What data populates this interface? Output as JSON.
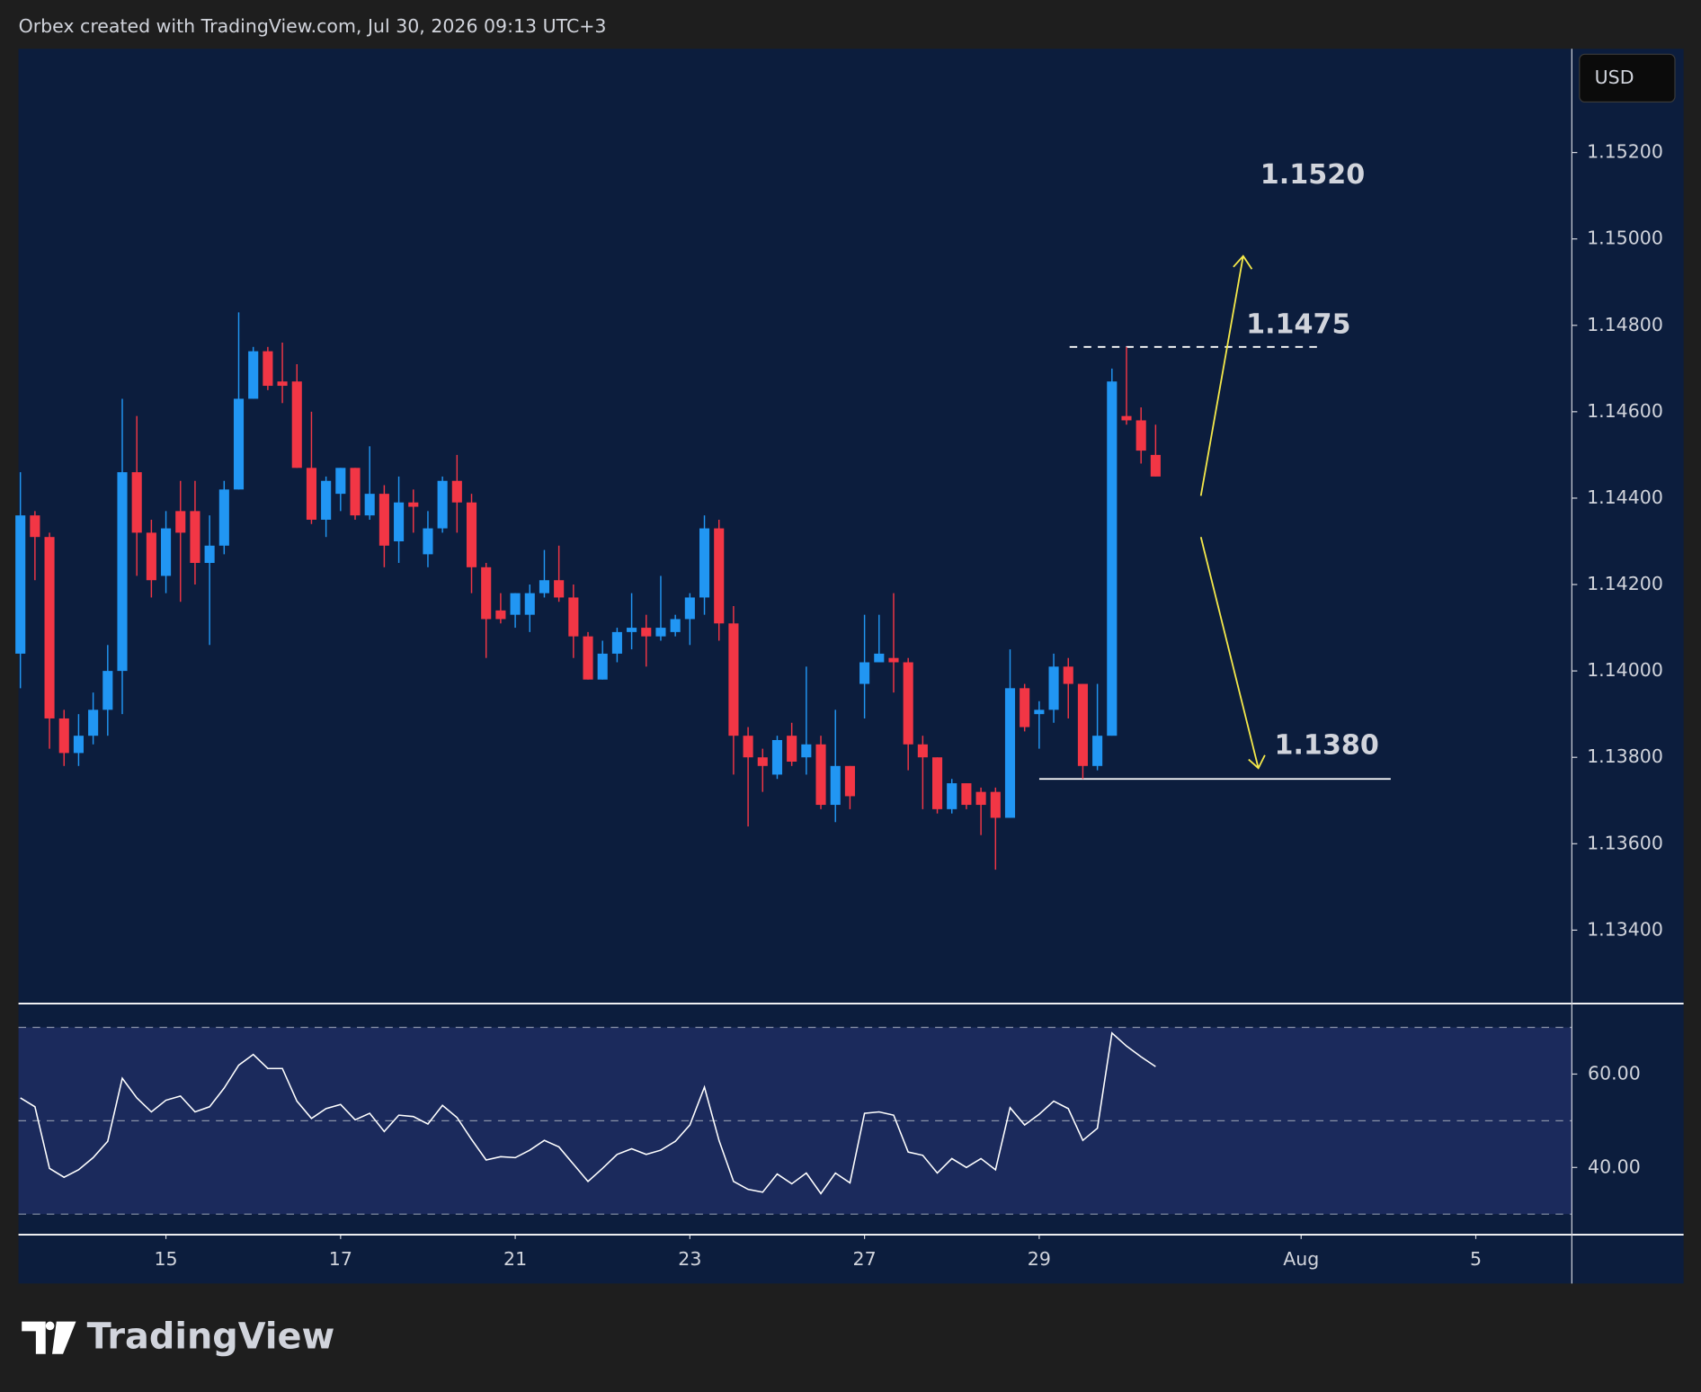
{
  "header": "Orbex created with TradingView.com, Jul 30, 2026 09:13 UTC+3",
  "currency": "USD",
  "logo": "TradingView",
  "annotations": [
    "1.1520",
    "1.1475",
    "1.1380"
  ],
  "chart_data": [
    {
      "type": "candlestick",
      "up_color": "#2196f3",
      "down_color": "#f23645",
      "open": [
        1.1404,
        1.1436,
        1.1431,
        1.1389,
        1.1381,
        1.1385,
        1.1391,
        1.14,
        1.1446,
        1.1432,
        1.1422,
        1.1437,
        1.1437,
        1.1425,
        1.1429,
        1.1442,
        1.1463,
        1.1474,
        1.1467,
        1.1467,
        1.1447,
        1.1435,
        1.1441,
        1.1447,
        1.1436,
        1.1441,
        1.143,
        1.1439,
        1.1427,
        1.1433,
        1.1444,
        1.1439,
        1.1424,
        1.1414,
        1.1413,
        1.1413,
        1.1418,
        1.1421,
        1.1417,
        1.1408,
        1.1398,
        1.1404,
        1.1409,
        1.141,
        1.1408,
        1.1409,
        1.1412,
        1.1417,
        1.1433,
        1.1411,
        1.1385,
        1.138,
        1.1376,
        1.1385,
        1.138,
        1.1383,
        1.1369,
        1.1378,
        1.1397,
        1.1402,
        1.1403,
        1.1402,
        1.1383,
        1.138,
        1.1368,
        1.1374,
        1.1372,
        1.1372,
        1.1366,
        1.1396,
        1.139,
        1.1391,
        1.1401,
        1.1397,
        1.1378,
        1.1385,
        1.1459,
        1.1458,
        1.145
      ],
      "high": [
        1.1446,
        1.1437,
        1.1432,
        1.1391,
        1.139,
        1.1395,
        1.1406,
        1.1463,
        1.1459,
        1.1435,
        1.1437,
        1.1444,
        1.1444,
        1.1436,
        1.1444,
        1.1483,
        1.1475,
        1.1475,
        1.1476,
        1.1471,
        1.146,
        1.1445,
        1.1447,
        1.1447,
        1.1452,
        1.1443,
        1.1445,
        1.1442,
        1.1437,
        1.1445,
        1.145,
        1.1441,
        1.1425,
        1.1418,
        1.1418,
        1.142,
        1.1428,
        1.1429,
        1.142,
        1.1409,
        1.1407,
        1.141,
        1.1418,
        1.1413,
        1.1422,
        1.1413,
        1.1418,
        1.1436,
        1.1435,
        1.1415,
        1.1387,
        1.1382,
        1.1385,
        1.1388,
        1.1401,
        1.1385,
        1.1391,
        1.1378,
        1.1413,
        1.1413,
        1.1418,
        1.1403,
        1.1385,
        1.138,
        1.1375,
        1.1374,
        1.1373,
        1.1373,
        1.1405,
        1.1397,
        1.1393,
        1.1404,
        1.1403,
        1.1397,
        1.1397,
        1.147,
        1.1475,
        1.1461,
        1.1457
      ],
      "low": [
        1.1396,
        1.1421,
        1.1382,
        1.1378,
        1.1378,
        1.1383,
        1.1385,
        1.139,
        1.1422,
        1.1417,
        1.1418,
        1.1416,
        1.142,
        1.1406,
        1.1427,
        1.1442,
        1.1463,
        1.1465,
        1.1462,
        1.1447,
        1.1434,
        1.1431,
        1.1437,
        1.1435,
        1.1435,
        1.1424,
        1.1425,
        1.1432,
        1.1424,
        1.1432,
        1.1432,
        1.1418,
        1.1403,
        1.1411,
        1.141,
        1.1409,
        1.1417,
        1.1416,
        1.1403,
        1.1398,
        1.1398,
        1.1402,
        1.1405,
        1.1401,
        1.1407,
        1.1408,
        1.1406,
        1.1413,
        1.1407,
        1.1376,
        1.1364,
        1.1372,
        1.1375,
        1.1378,
        1.1376,
        1.1368,
        1.1365,
        1.1368,
        1.1389,
        1.1402,
        1.1395,
        1.1377,
        1.1368,
        1.1367,
        1.1367,
        1.1368,
        1.1362,
        1.1354,
        1.1366,
        1.1386,
        1.1382,
        1.1388,
        1.1389,
        1.1375,
        1.1377,
        1.1385,
        1.1457,
        1.1448,
        1.1445
      ],
      "close": [
        1.1436,
        1.1431,
        1.1389,
        1.1381,
        1.1385,
        1.1391,
        1.14,
        1.1446,
        1.1432,
        1.1421,
        1.1433,
        1.1432,
        1.1425,
        1.1429,
        1.1442,
        1.1463,
        1.1474,
        1.1466,
        1.1466,
        1.1447,
        1.1435,
        1.1444,
        1.1447,
        1.1436,
        1.1441,
        1.1429,
        1.1439,
        1.1438,
        1.1433,
        1.1444,
        1.1439,
        1.1424,
        1.1412,
        1.1412,
        1.1418,
        1.1418,
        1.1421,
        1.1417,
        1.1408,
        1.1398,
        1.1404,
        1.1409,
        1.141,
        1.1408,
        1.141,
        1.1412,
        1.1417,
        1.1433,
        1.1411,
        1.1385,
        1.138,
        1.1378,
        1.1384,
        1.1379,
        1.1383,
        1.1369,
        1.1378,
        1.1371,
        1.1402,
        1.1404,
        1.1402,
        1.1383,
        1.138,
        1.1368,
        1.1374,
        1.1369,
        1.1369,
        1.1366,
        1.1396,
        1.1387,
        1.1391,
        1.1401,
        1.1397,
        1.1378,
        1.1385,
        1.1467,
        1.1458,
        1.1451,
        1.1445
      ],
      "levels": [
        {
          "value": 1.1475,
          "style": "dashed"
        },
        {
          "value": 1.1375,
          "style": "solid"
        }
      ],
      "xlim": [
        -0.13,
        106.6
      ],
      "xticks": [
        {
          "value": 10,
          "label": "15"
        },
        {
          "value": 22,
          "label": "17"
        },
        {
          "value": 34,
          "label": "21"
        },
        {
          "value": 46,
          "label": "23"
        },
        {
          "value": 58,
          "label": "27"
        },
        {
          "value": 70,
          "label": "29"
        },
        {
          "value": 88,
          "label": "Aug"
        },
        {
          "value": 100,
          "label": "5"
        }
      ],
      "ylim": [
        1.1323,
        1.1544
      ],
      "yticks": [
        {
          "value": 1.152,
          "label": "1.15200"
        },
        {
          "value": 1.15,
          "label": "1.15000"
        },
        {
          "value": 1.148,
          "label": "1.14800"
        },
        {
          "value": 1.146,
          "label": "1.14600"
        },
        {
          "value": 1.144,
          "label": "1.14400"
        },
        {
          "value": 1.142,
          "label": "1.14200"
        },
        {
          "value": 1.14,
          "label": "1.14000"
        },
        {
          "value": 1.138,
          "label": "1.13800"
        },
        {
          "value": 1.136,
          "label": "1.13600"
        },
        {
          "value": 1.134,
          "label": "1.13400"
        }
      ]
    },
    {
      "type": "line",
      "color": "#ffffff",
      "values": [
        54.9,
        53.0,
        39.8,
        37.9,
        39.5,
        42.1,
        45.6,
        59.1,
        54.9,
        51.9,
        54.4,
        55.3,
        51.9,
        53.0,
        57.0,
        61.9,
        64.2,
        61.2,
        61.2,
        54.2,
        50.5,
        52.6,
        53.5,
        50.2,
        51.6,
        47.7,
        51.2,
        50.9,
        49.3,
        53.3,
        50.7,
        46.0,
        41.6,
        42.3,
        42.1,
        43.7,
        45.8,
        44.4,
        40.7,
        37.0,
        39.8,
        42.8,
        44.0,
        42.8,
        43.7,
        45.6,
        49.1,
        57.2,
        45.8,
        37.0,
        35.3,
        34.7,
        38.6,
        36.5,
        38.8,
        34.4,
        38.8,
        36.7,
        51.6,
        51.9,
        51.2,
        43.3,
        42.6,
        38.8,
        41.9,
        40.0,
        41.9,
        39.5,
        52.8,
        49.1,
        51.4,
        54.2,
        52.6,
        45.8,
        48.4,
        68.8,
        66.0,
        63.7,
        61.6
      ],
      "band": [
        30,
        70
      ],
      "levels": [
        70,
        50,
        30
      ],
      "ylim": [
        25.6,
        75.1
      ],
      "yticks": [
        {
          "value": 60,
          "label": "60.00"
        },
        {
          "value": 40,
          "label": "40.00"
        }
      ]
    }
  ]
}
